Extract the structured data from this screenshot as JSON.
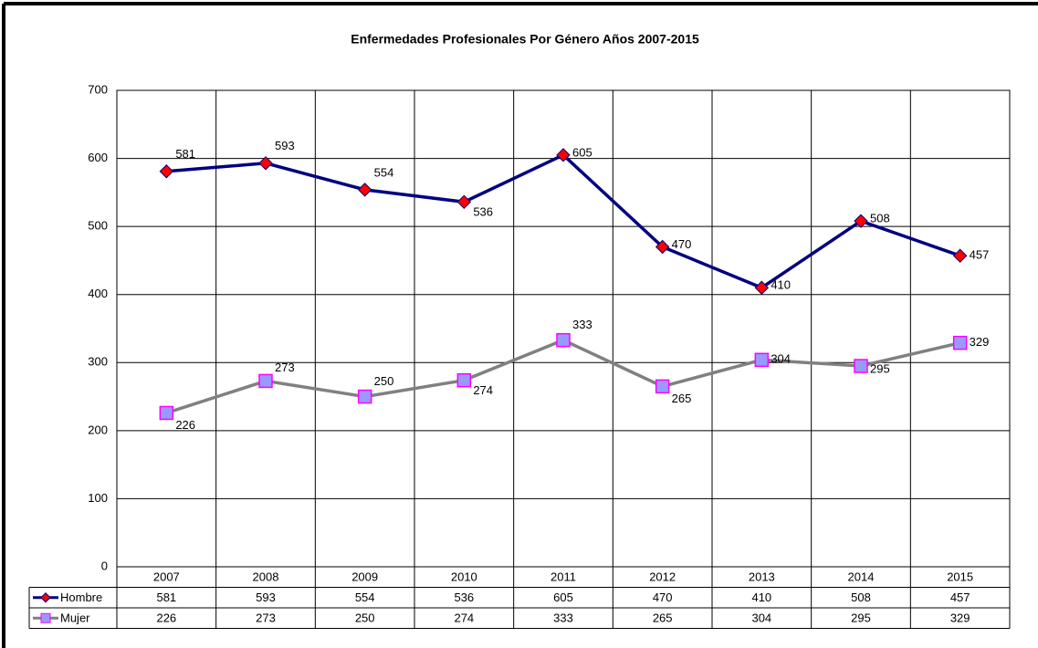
{
  "chart_data": {
    "type": "line",
    "title": "Enfermedades Profesionales Por Género Años 2007-2015",
    "categories": [
      "2007",
      "2008",
      "2009",
      "2010",
      "2011",
      "2012",
      "2013",
      "2014",
      "2015"
    ],
    "series": [
      {
        "name": "Hombre",
        "color": "#000080",
        "marker_color": "#ff0000",
        "values": [
          581,
          593,
          554,
          536,
          605,
          470,
          410,
          508,
          457
        ]
      },
      {
        "name": "Mujer",
        "color": "#808080",
        "marker_color": "#9999ff",
        "marker_edge": "#ff00ff",
        "values": [
          226,
          273,
          250,
          274,
          333,
          265,
          304,
          295,
          329
        ]
      }
    ],
    "ylim": [
      0,
      700
    ],
    "yticks": [
      0,
      100,
      200,
      300,
      400,
      500,
      600,
      700
    ],
    "grid": true,
    "data_table": true
  }
}
